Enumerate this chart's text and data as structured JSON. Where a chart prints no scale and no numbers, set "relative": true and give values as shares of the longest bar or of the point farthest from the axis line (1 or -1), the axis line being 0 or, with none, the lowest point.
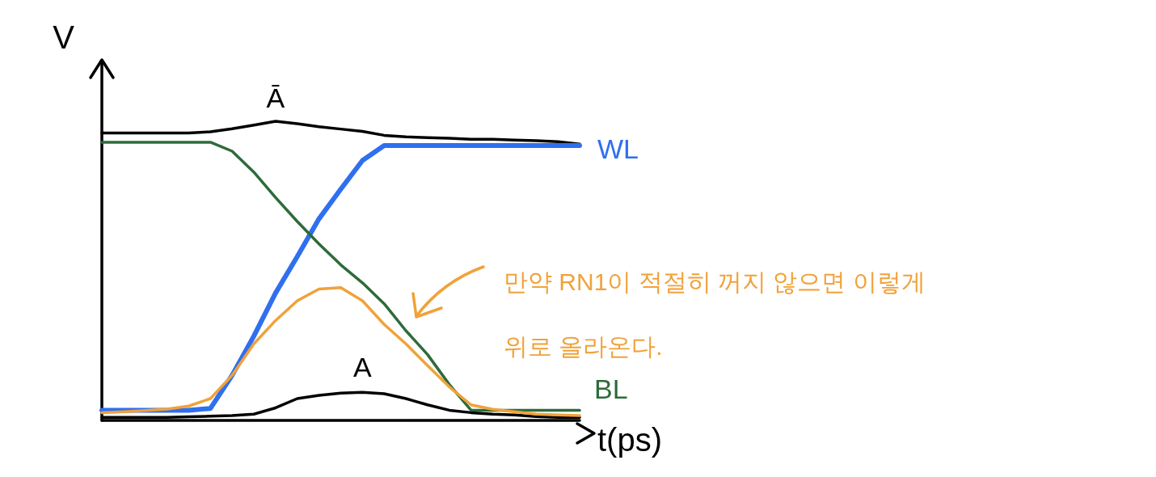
{
  "chart_data": {
    "type": "line",
    "relative": true,
    "xlabel": "t(ps)",
    "ylabel": "V",
    "categories": [
      null,
      null,
      null,
      null,
      null,
      null,
      null,
      null,
      null,
      null,
      null,
      null,
      null,
      null,
      null,
      null,
      null,
      null,
      null,
      null,
      null,
      null,
      null
    ],
    "series": [
      {
        "name": "Ā",
        "color": "#000000",
        "values": [
          0.961,
          0.961,
          0.961,
          0.961,
          0.961,
          0.965,
          0.975,
          0.987,
          1,
          0.992,
          0.982,
          0.974,
          0.966,
          0.953,
          0.948,
          0.945,
          0.943,
          0.94,
          0.94,
          0.937,
          0.935,
          0.932,
          0.924
        ]
      },
      {
        "name": "WL",
        "color": "#2f6ff0",
        "values": [
          0.034,
          0.034,
          0.034,
          0.034,
          0.034,
          0.04,
          0.151,
          0.282,
          0.426,
          0.548,
          0.674,
          0.773,
          0.869,
          0.919,
          0.919,
          0.919,
          0.919,
          0.919,
          0.919,
          0.919,
          0.919,
          0.919,
          0.919
        ]
      },
      {
        "name": "BL",
        "color": "#2e6b3a",
        "values": [
          0.93,
          0.93,
          0.93,
          0.93,
          0.93,
          0.93,
          0.9,
          0.83,
          0.745,
          0.665,
          0.59,
          0.52,
          0.46,
          0.39,
          0.3,
          0.22,
          0.12,
          0.034,
          0.034,
          0.034,
          0.034,
          0.034,
          0.034
        ]
      },
      {
        "color": "#f0a23a",
        "values": [
          0.026,
          0.029,
          0.033,
          0.038,
          0.048,
          0.073,
          0.151,
          0.256,
          0.334,
          0.4,
          0.439,
          0.444,
          0.4,
          0.321,
          0.256,
          0.183,
          0.112,
          0.052,
          0.037,
          0.029,
          0.021,
          0.018,
          0.016
        ]
      },
      {
        "name": "A",
        "color": "#000000",
        "values": [
          0.01,
          0.01,
          0.01,
          0.01,
          0.012,
          0.014,
          0.016,
          0.021,
          0.042,
          0.073,
          0.084,
          0.091,
          0.094,
          0.089,
          0.073,
          0.052,
          0.034,
          0.026,
          0.021,
          0.018,
          0.013,
          0.01,
          0.01
        ]
      }
    ],
    "annotations": [
      "만약 RN1이 적절히 꺼지 않으면 이렇게\n위로 올라온다."
    ],
    "marker": "none",
    "line_style": "solid",
    "grid": false,
    "legend": false
  }
}
